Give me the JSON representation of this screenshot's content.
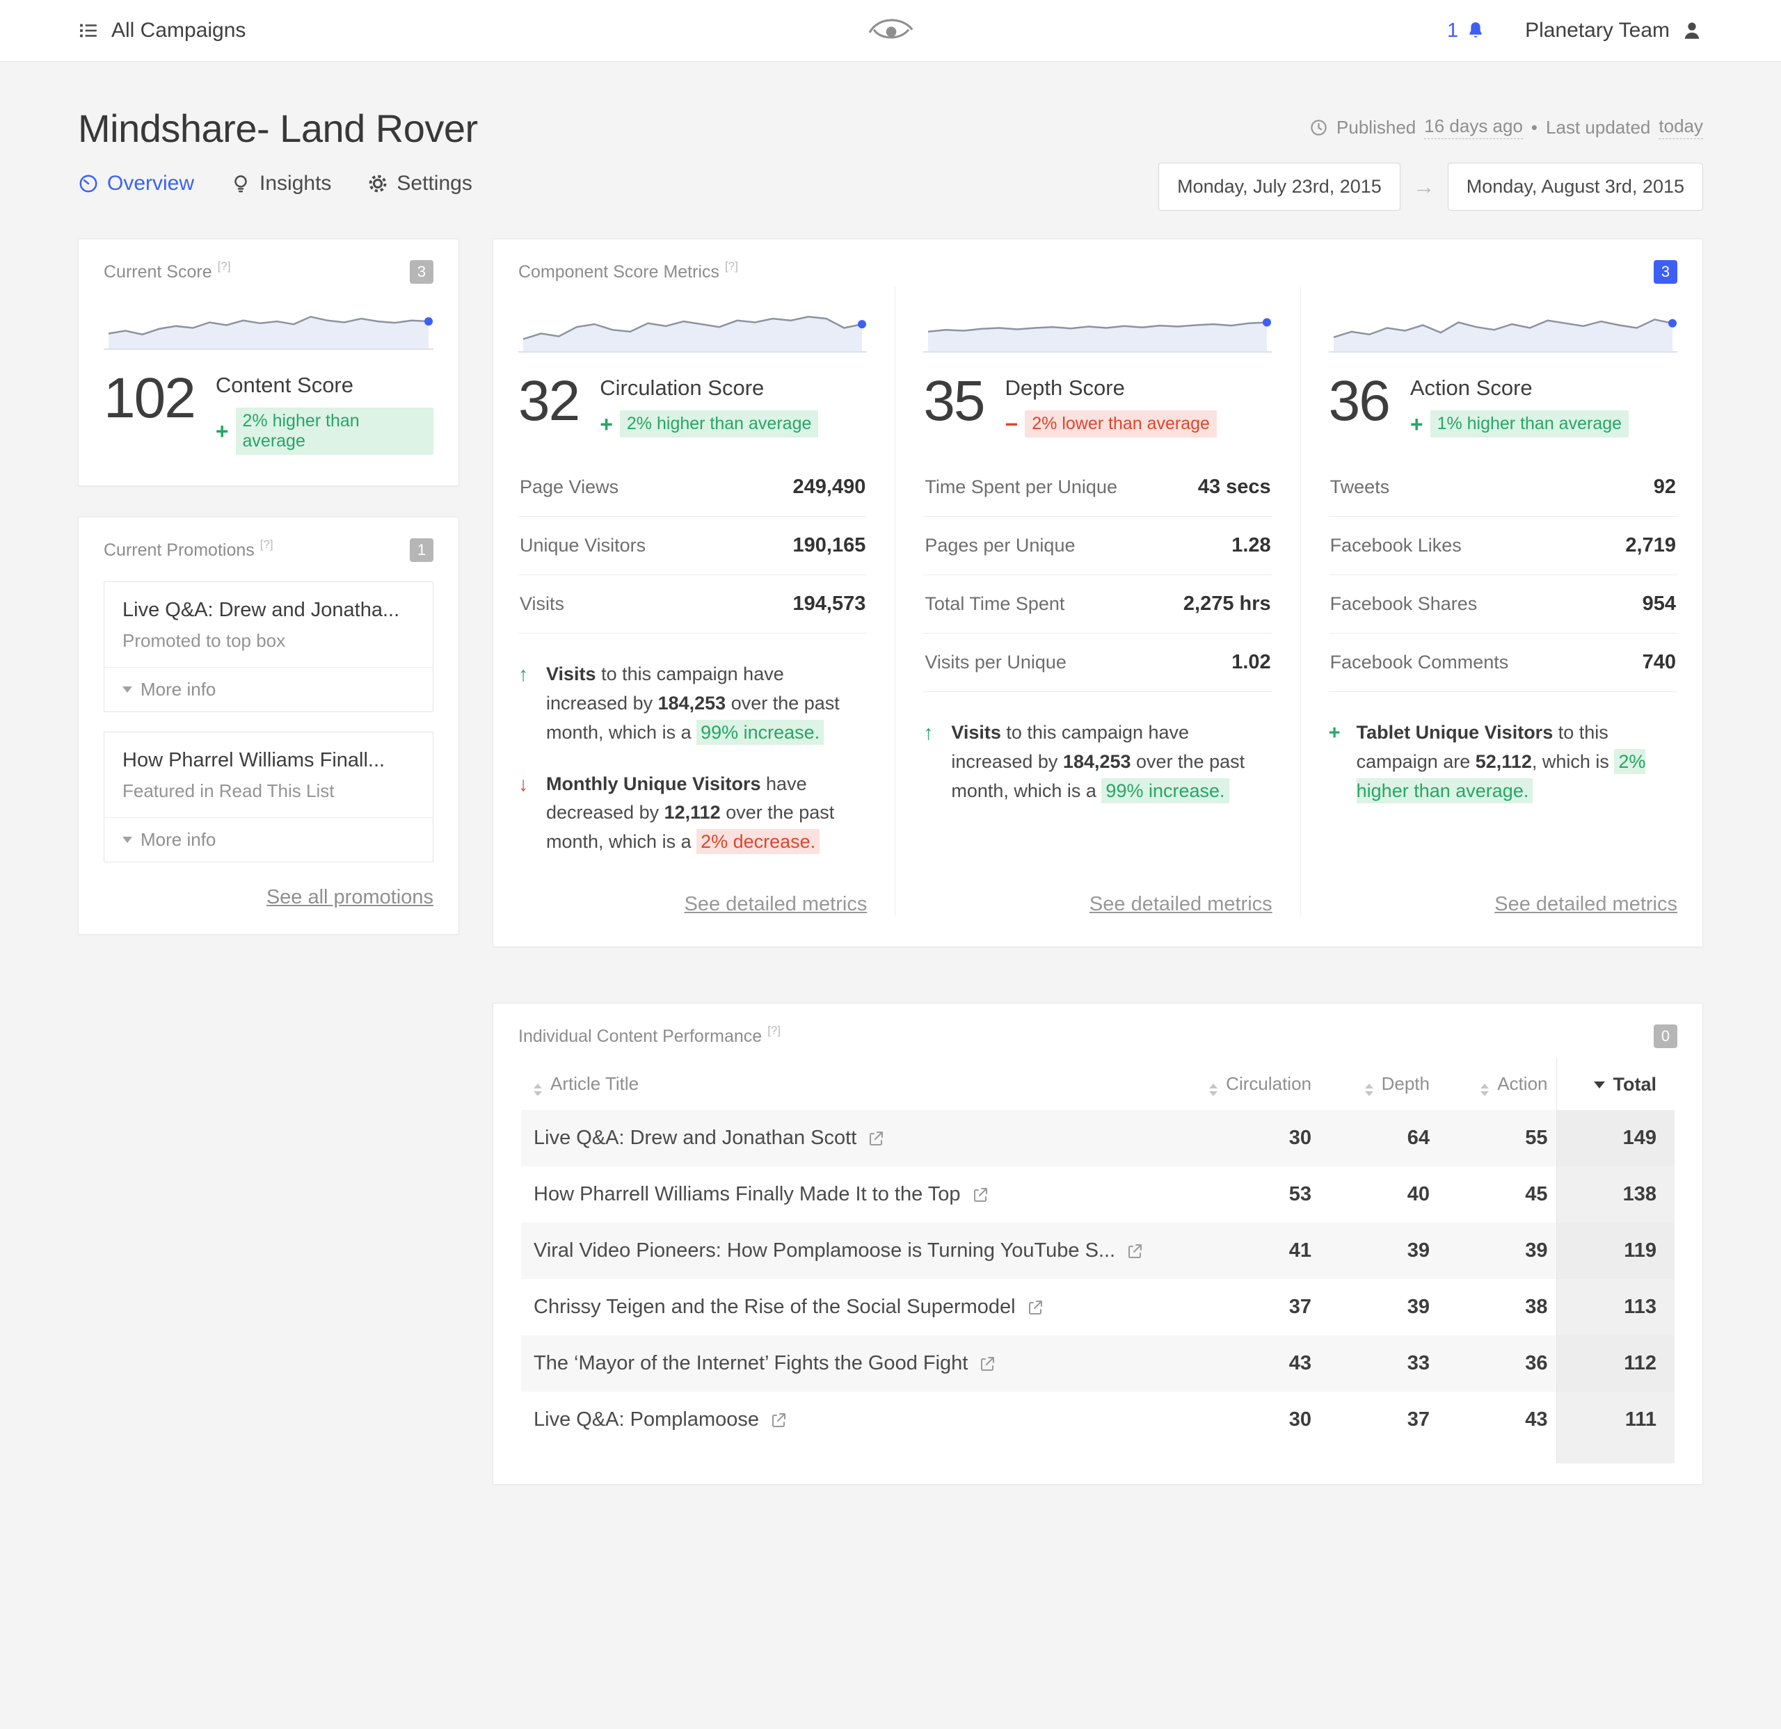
{
  "colors": {
    "accent": "#3d5ef7",
    "positive": "#27a567",
    "negative": "#e0442e",
    "spark_line": "#8d939e",
    "spark_fill": "#e9edf8"
  },
  "topbar": {
    "menu_label": "All Campaigns",
    "notification_count": "1",
    "team_name": "Planetary Team"
  },
  "header": {
    "title": "Mindshare- Land Rover",
    "published_prefix": "Published",
    "published_time": "16 days ago",
    "separator": "•",
    "updated_prefix": "Last updated",
    "updated_time": "today",
    "tabs": [
      {
        "label": "Overview"
      },
      {
        "label": "Insights"
      },
      {
        "label": "Settings"
      }
    ],
    "date_from": "Monday, July 23rd, 2015",
    "date_to": "Monday, August 3rd, 2015"
  },
  "current_score": {
    "title": "Current Score",
    "help": "[?]",
    "badge": "3",
    "value": "102",
    "label": "Content Score",
    "delta_sign": "+",
    "delta_text": "2% higher than average",
    "delta_type": "up",
    "sparkline": [
      32,
      38,
      30,
      42,
      48,
      44,
      56,
      50,
      60,
      54,
      58,
      52,
      68,
      60,
      56,
      64,
      58,
      55,
      60,
      58
    ]
  },
  "promotions": {
    "title": "Current Promotions",
    "help": "[?]",
    "badge": "1",
    "items": [
      {
        "title": "Live Q&A: Drew and Jonatha...",
        "subtitle": "Promoted to top box",
        "more_label": "More info"
      },
      {
        "title": "How Pharrel Williams Finall...",
        "subtitle": "Featured in Read This List",
        "more_label": "More info"
      }
    ],
    "see_all_label": "See all promotions"
  },
  "component_scores": {
    "title": "Component Score Metrics",
    "help": "[?]",
    "badge": "3",
    "columns": [
      {
        "value": "32",
        "label": "Circulation Score",
        "delta_sign": "+",
        "delta_text": "2% higher than average",
        "delta_type": "up",
        "sparkline": [
          26,
          38,
          32,
          52,
          58,
          46,
          42,
          60,
          54,
          64,
          58,
          52,
          66,
          62,
          70,
          66,
          74,
          70,
          50,
          58
        ],
        "metrics": [
          {
            "label": "Page Views",
            "value": "249,490"
          },
          {
            "label": "Unique Visitors",
            "value": "190,165"
          },
          {
            "label": "Visits",
            "value": "194,573"
          }
        ],
        "notes": [
          {
            "icon": "arrow-up",
            "tone": "green",
            "segments": [
              {
                "t": "Visits",
                "b": true
              },
              {
                "t": " to this campaign have increased by "
              },
              {
                "t": "184,253",
                "b": true
              },
              {
                "t": " over the past month, which is a "
              },
              {
                "t": "99% increase.",
                "hl": "green"
              }
            ]
          },
          {
            "icon": "arrow-down",
            "tone": "red",
            "segments": [
              {
                "t": "Monthly Unique Visitors",
                "b": true
              },
              {
                "t": " have decreased by "
              },
              {
                "t": "12,112",
                "b": true
              },
              {
                "t": " over the past month, which is a "
              },
              {
                "t": "2% decrease.",
                "hl": "red"
              }
            ]
          }
        ],
        "link_label": "See detailed metrics"
      },
      {
        "value": "35",
        "label": "Depth Score",
        "delta_sign": "−",
        "delta_text": "2% lower than average",
        "delta_type": "down",
        "sparkline": [
          42,
          46,
          44,
          48,
          50,
          47,
          50,
          52,
          49,
          53,
          50,
          54,
          51,
          55,
          53,
          56,
          58,
          55,
          60,
          62
        ],
        "metrics": [
          {
            "label": "Time Spent per Unique",
            "value": "43 secs"
          },
          {
            "label": "Pages per Unique",
            "value": "1.28"
          },
          {
            "label": "Total Time Spent",
            "value": "2,275 hrs"
          },
          {
            "label": "Visits per Unique",
            "value": "1.02"
          }
        ],
        "notes": [
          {
            "icon": "arrow-up",
            "tone": "green",
            "segments": [
              {
                "t": "Visits",
                "b": true
              },
              {
                "t": " to this campaign have increased by "
              },
              {
                "t": "184,253",
                "b": true
              },
              {
                "t": " over the past month, which is a "
              },
              {
                "t": "99% increase.",
                "hl": "green"
              }
            ]
          }
        ],
        "link_label": "See detailed metrics"
      },
      {
        "value": "36",
        "label": "Action Score",
        "delta_sign": "+",
        "delta_text": "1% higher than average",
        "delta_type": "up",
        "sparkline": [
          30,
          42,
          36,
          50,
          44,
          56,
          40,
          62,
          52,
          46,
          58,
          50,
          66,
          60,
          54,
          64,
          56,
          50,
          68,
          60
        ],
        "metrics": [
          {
            "label": "Tweets",
            "value": "92"
          },
          {
            "label": "Facebook Likes",
            "value": "2,719"
          },
          {
            "label": "Facebook Shares",
            "value": "954"
          },
          {
            "label": "Facebook Comments",
            "value": "740"
          }
        ],
        "notes": [
          {
            "icon": "plus",
            "tone": "green",
            "segments": [
              {
                "t": "Tablet Unique Visitors",
                "b": true
              },
              {
                "t": " to this campaign are "
              },
              {
                "t": "52,112",
                "b": true
              },
              {
                "t": ", which is "
              },
              {
                "t": "2% higher than average.",
                "hl": "green"
              }
            ]
          }
        ],
        "link_label": "See detailed metrics"
      }
    ]
  },
  "content_performance": {
    "title": "Individual Content Performance",
    "help": "[?]",
    "badge": "0",
    "columns": {
      "article": "Article Title",
      "circulation": "Circulation",
      "depth": "Depth",
      "action": "Action",
      "total": "Total"
    },
    "rows": [
      {
        "title": "Live Q&A: Drew and Jonathan Scott",
        "circulation": "30",
        "depth": "64",
        "action": "55",
        "total": "149"
      },
      {
        "title": "How Pharrell Williams Finally Made It to the Top",
        "circulation": "53",
        "depth": "40",
        "action": "45",
        "total": "138"
      },
      {
        "title": "Viral Video Pioneers: How Pomplamoose is Turning YouTube S...",
        "circulation": "41",
        "depth": "39",
        "action": "39",
        "total": "119"
      },
      {
        "title": "Chrissy Teigen and the Rise of the Social Supermodel",
        "circulation": "37",
        "depth": "39",
        "action": "38",
        "total": "113"
      },
      {
        "title": "The ‘Mayor of the Internet’ Fights the Good Fight",
        "circulation": "43",
        "depth": "33",
        "action": "36",
        "total": "112"
      },
      {
        "title": "Live Q&A: Pomplamoose",
        "circulation": "30",
        "depth": "37",
        "action": "43",
        "total": "111"
      }
    ]
  }
}
